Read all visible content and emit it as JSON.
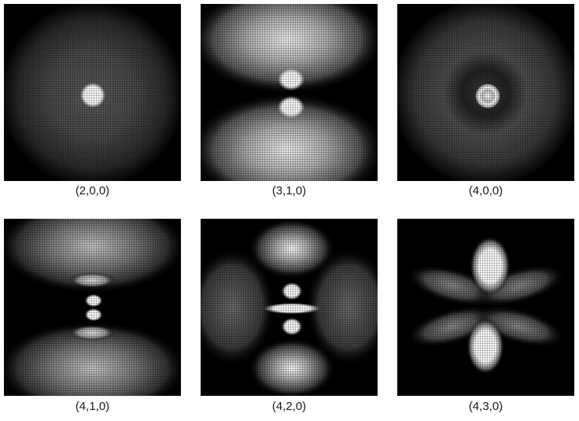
{
  "panels": [
    {
      "label": "(2,0,0)"
    },
    {
      "label": "(3,1,0)"
    },
    {
      "label": "(4,0,0)"
    },
    {
      "label": "(4,1,0)"
    },
    {
      "label": "(4,2,0)"
    },
    {
      "label": "(4,3,0)"
    }
  ],
  "colors": {
    "background": "#000000",
    "glow": "#ffffff",
    "caption_text": "#1a1a1a"
  }
}
